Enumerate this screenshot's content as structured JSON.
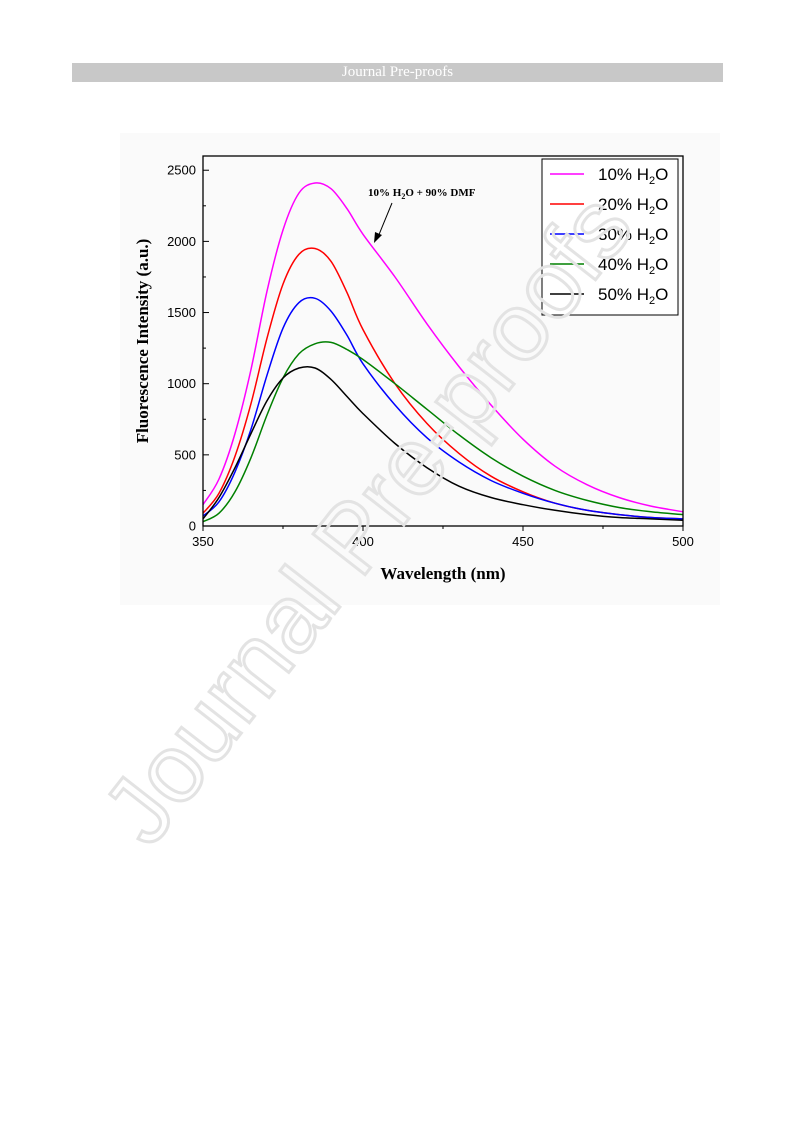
{
  "header": {
    "banner": "Journal Pre-proofs"
  },
  "watermark": {
    "text": "Journal Pre-proofs",
    "color": "#e6e6e6"
  },
  "chart_data": {
    "type": "line",
    "xlabel": "Wavelength (nm)",
    "ylabel": "Fluorescence Intensity (a.u.)",
    "xlim": [
      350,
      500
    ],
    "ylim": [
      0,
      2600
    ],
    "xticks": [
      350,
      400,
      450,
      500
    ],
    "yticks": [
      0,
      500,
      1000,
      1500,
      2000,
      2500
    ],
    "legend_position": "top-right",
    "annotation": {
      "text_pre": "10% H",
      "sub": "2",
      "text_post": "O + 90% DMF",
      "points_to": [
        387,
        2000
      ]
    },
    "x": [
      350,
      355,
      360,
      365,
      370,
      375,
      380,
      385,
      390,
      395,
      400,
      410,
      420,
      430,
      440,
      450,
      460,
      470,
      480,
      490,
      500
    ],
    "series": [
      {
        "name_pre": "10% H",
        "name_sub": "2",
        "name_post": "O",
        "color": "#ff00ff",
        "values": [
          150,
          330,
          650,
          1100,
          1650,
          2080,
          2340,
          2410,
          2370,
          2230,
          2050,
          1750,
          1420,
          1120,
          850,
          610,
          420,
          290,
          200,
          140,
          100
        ]
      },
      {
        "name_pre": "20% H",
        "name_sub": "2",
        "name_post": "O",
        "color": "#ff0000",
        "values": [
          90,
          230,
          490,
          860,
          1320,
          1700,
          1910,
          1950,
          1860,
          1640,
          1380,
          1000,
          720,
          510,
          350,
          240,
          160,
          110,
          80,
          60,
          50
        ]
      },
      {
        "name_pre": "30% H",
        "name_sub": "2",
        "name_post": "O",
        "color": "#0000ff",
        "values": [
          70,
          170,
          380,
          680,
          1060,
          1390,
          1570,
          1600,
          1510,
          1340,
          1140,
          850,
          620,
          450,
          320,
          230,
          160,
          110,
          80,
          60,
          50
        ]
      },
      {
        "name_pre": "40% H",
        "name_sub": "2",
        "name_post": "O",
        "color": "#008000",
        "values": [
          30,
          90,
          240,
          480,
          780,
          1040,
          1210,
          1280,
          1290,
          1240,
          1170,
          1000,
          820,
          640,
          480,
          350,
          250,
          180,
          130,
          100,
          80
        ]
      },
      {
        "name_pre": "50% H",
        "name_sub": "2",
        "name_post": "O",
        "color": "#000000",
        "values": [
          50,
          200,
          410,
          650,
          880,
          1040,
          1110,
          1110,
          1030,
          910,
          790,
          580,
          410,
          280,
          200,
          150,
          110,
          80,
          60,
          50,
          40
        ]
      }
    ]
  }
}
